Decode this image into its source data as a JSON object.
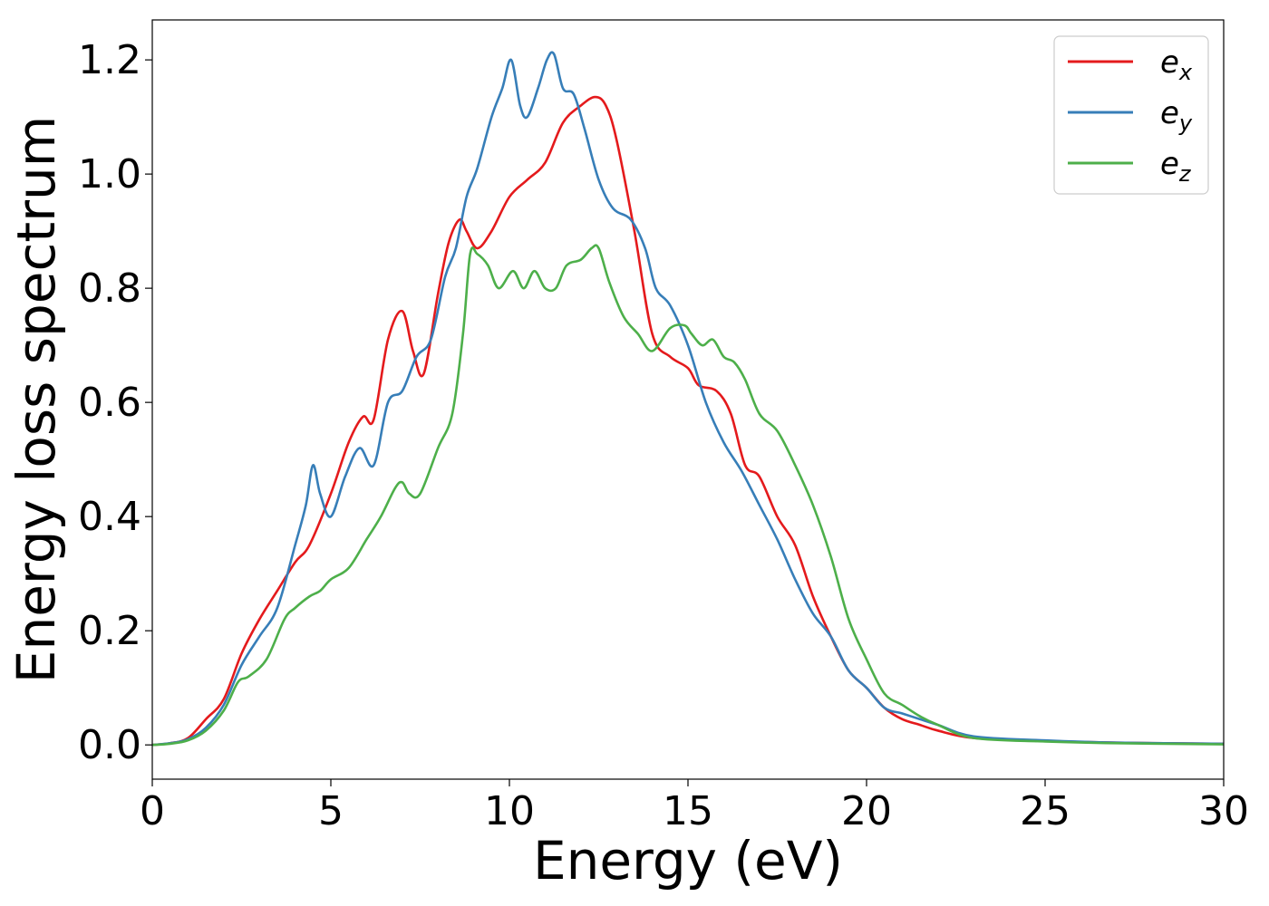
{
  "chart_data": {
    "type": "line",
    "title": "",
    "xlabel": "Energy (eV)",
    "ylabel": "Energy loss spectrum",
    "xlim": [
      0,
      30
    ],
    "ylim": [
      -0.06,
      1.27
    ],
    "xticks": [
      0,
      5,
      10,
      15,
      20,
      25,
      30
    ],
    "xtick_labels": [
      "0",
      "5",
      "10",
      "15",
      "20",
      "25",
      "30"
    ],
    "yticks": [
      0.0,
      0.2,
      0.4,
      0.6,
      0.8,
      1.0,
      1.2
    ],
    "ytick_labels": [
      "0.0",
      "0.2",
      "0.4",
      "0.6",
      "0.8",
      "1.0",
      "1.2"
    ],
    "grid": false,
    "legend_position": "top-right",
    "series": [
      {
        "name": "e_x",
        "label_base": "e",
        "label_sub": "x",
        "color": "#e41a1c",
        "x": [
          0,
          0.5,
          1.0,
          1.5,
          2.0,
          2.5,
          3.0,
          3.5,
          4.0,
          4.4,
          5.0,
          5.5,
          5.9,
          6.2,
          6.6,
          7.0,
          7.3,
          7.6,
          8.0,
          8.3,
          8.6,
          8.8,
          9.1,
          9.5,
          10.0,
          10.5,
          11.0,
          11.5,
          12.0,
          12.4,
          12.7,
          13.0,
          13.5,
          14.0,
          14.5,
          15.0,
          15.3,
          15.8,
          16.2,
          16.6,
          17.0,
          17.5,
          18.0,
          18.5,
          19.0,
          19.5,
          20.0,
          20.5,
          21.0,
          21.5,
          22.0,
          23.0,
          25.0,
          27.0,
          30.0
        ],
        "y": [
          0.0,
          0.003,
          0.012,
          0.045,
          0.08,
          0.16,
          0.22,
          0.27,
          0.32,
          0.35,
          0.44,
          0.53,
          0.575,
          0.57,
          0.71,
          0.76,
          0.69,
          0.65,
          0.79,
          0.88,
          0.92,
          0.9,
          0.87,
          0.9,
          0.96,
          0.99,
          1.02,
          1.09,
          1.12,
          1.135,
          1.12,
          1.06,
          0.9,
          0.72,
          0.68,
          0.66,
          0.63,
          0.62,
          0.58,
          0.49,
          0.47,
          0.4,
          0.35,
          0.26,
          0.19,
          0.13,
          0.1,
          0.065,
          0.045,
          0.035,
          0.025,
          0.012,
          0.007,
          0.004,
          0.002
        ]
      },
      {
        "name": "e_y",
        "label_base": "e",
        "label_sub": "y",
        "color": "#377eb8",
        "x": [
          0,
          0.5,
          1.0,
          1.5,
          2.0,
          2.5,
          3.0,
          3.5,
          4.0,
          4.3,
          4.5,
          4.7,
          5.0,
          5.4,
          5.8,
          6.2,
          6.6,
          7.0,
          7.4,
          7.8,
          8.2,
          8.5,
          8.8,
          9.1,
          9.5,
          9.8,
          10.05,
          10.3,
          10.5,
          10.8,
          11.05,
          11.25,
          11.5,
          11.8,
          12.1,
          12.5,
          12.9,
          13.4,
          13.8,
          14.1,
          14.5,
          15.0,
          15.5,
          16.0,
          16.5,
          17.0,
          17.5,
          18.0,
          18.5,
          19.0,
          19.5,
          20.0,
          20.5,
          21.0,
          21.5,
          22.0,
          23.0,
          25.0,
          27.0,
          30.0
        ],
        "y": [
          0.0,
          0.003,
          0.01,
          0.03,
          0.07,
          0.14,
          0.19,
          0.24,
          0.35,
          0.42,
          0.49,
          0.44,
          0.4,
          0.47,
          0.52,
          0.49,
          0.6,
          0.62,
          0.68,
          0.71,
          0.82,
          0.87,
          0.96,
          1.01,
          1.1,
          1.15,
          1.2,
          1.12,
          1.1,
          1.15,
          1.2,
          1.21,
          1.15,
          1.14,
          1.08,
          0.99,
          0.94,
          0.92,
          0.87,
          0.8,
          0.77,
          0.7,
          0.6,
          0.53,
          0.48,
          0.42,
          0.36,
          0.29,
          0.23,
          0.19,
          0.13,
          0.1,
          0.065,
          0.055,
          0.045,
          0.035,
          0.015,
          0.008,
          0.004,
          0.002
        ]
      },
      {
        "name": "e_z",
        "label_base": "e",
        "label_sub": "z",
        "color": "#4daf4a",
        "x": [
          0,
          0.5,
          1.0,
          1.5,
          2.0,
          2.4,
          2.7,
          3.2,
          3.7,
          4.0,
          4.4,
          4.7,
          5.0,
          5.5,
          6.0,
          6.4,
          6.8,
          7.0,
          7.2,
          7.5,
          8.0,
          8.4,
          8.7,
          8.9,
          9.1,
          9.4,
          9.7,
          10.1,
          10.4,
          10.7,
          11.0,
          11.3,
          11.6,
          12.0,
          12.3,
          12.5,
          12.8,
          13.2,
          13.6,
          14.0,
          14.5,
          14.9,
          15.1,
          15.4,
          15.7,
          16.0,
          16.3,
          16.6,
          17.0,
          17.5,
          18.0,
          18.5,
          19.0,
          19.5,
          20.0,
          20.5,
          21.0,
          21.5,
          22.0,
          23.0,
          25.0,
          27.0,
          30.0
        ],
        "y": [
          0.0,
          0.002,
          0.008,
          0.025,
          0.06,
          0.11,
          0.12,
          0.15,
          0.22,
          0.24,
          0.26,
          0.27,
          0.29,
          0.31,
          0.36,
          0.4,
          0.45,
          0.46,
          0.44,
          0.44,
          0.52,
          0.58,
          0.72,
          0.86,
          0.86,
          0.84,
          0.8,
          0.83,
          0.8,
          0.83,
          0.8,
          0.8,
          0.84,
          0.85,
          0.87,
          0.87,
          0.81,
          0.75,
          0.72,
          0.69,
          0.73,
          0.735,
          0.72,
          0.7,
          0.71,
          0.68,
          0.67,
          0.64,
          0.58,
          0.55,
          0.49,
          0.42,
          0.33,
          0.22,
          0.15,
          0.09,
          0.07,
          0.05,
          0.035,
          0.012,
          0.006,
          0.003,
          0.001
        ]
      }
    ]
  }
}
